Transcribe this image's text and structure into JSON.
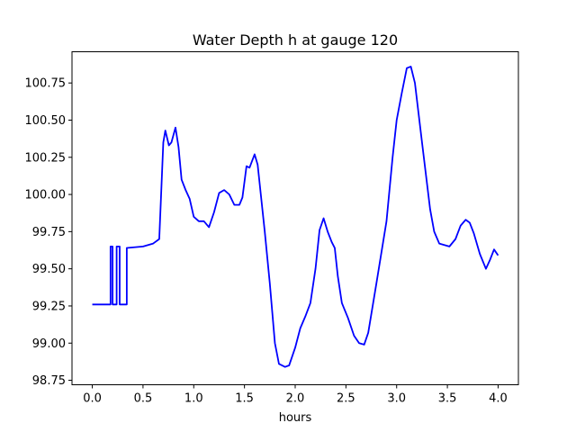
{
  "chart_data": {
    "type": "line",
    "title": "Water Depth h at gauge 120",
    "xlabel": "hours",
    "ylabel": "",
    "xlim": [
      -0.2,
      4.2
    ],
    "ylim": [
      98.72,
      100.96
    ],
    "xticks": [
      0.0,
      0.5,
      1.0,
      1.5,
      2.0,
      2.5,
      3.0,
      3.5,
      4.0
    ],
    "xtick_labels": [
      "0.0",
      "0.5",
      "1.0",
      "1.5",
      "2.0",
      "2.5",
      "3.0",
      "3.5",
      "4.0"
    ],
    "yticks": [
      98.75,
      99.0,
      99.25,
      99.5,
      99.75,
      100.0,
      100.25,
      100.5,
      100.75
    ],
    "ytick_labels": [
      "98.75",
      "99.00",
      "99.25",
      "99.50",
      "99.75",
      "100.00",
      "100.25",
      "100.50",
      "100.75"
    ],
    "grid": false,
    "series": [
      {
        "color": "#0000ff",
        "points": [
          [
            0.0,
            99.26
          ],
          [
            0.18,
            99.26
          ],
          [
            0.18,
            99.65
          ],
          [
            0.2,
            99.65
          ],
          [
            0.2,
            99.26
          ],
          [
            0.24,
            99.26
          ],
          [
            0.24,
            99.65
          ],
          [
            0.27,
            99.65
          ],
          [
            0.27,
            99.26
          ],
          [
            0.34,
            99.26
          ],
          [
            0.34,
            99.64
          ],
          [
            0.5,
            99.65
          ],
          [
            0.6,
            99.67
          ],
          [
            0.66,
            99.7
          ],
          [
            0.7,
            100.35
          ],
          [
            0.72,
            100.43
          ],
          [
            0.755,
            100.33
          ],
          [
            0.78,
            100.35
          ],
          [
            0.82,
            100.45
          ],
          [
            0.85,
            100.32
          ],
          [
            0.88,
            100.1
          ],
          [
            0.92,
            100.03
          ],
          [
            0.96,
            99.97
          ],
          [
            1.0,
            99.85
          ],
          [
            1.05,
            99.82
          ],
          [
            1.1,
            99.82
          ],
          [
            1.15,
            99.78
          ],
          [
            1.2,
            99.88
          ],
          [
            1.25,
            100.01
          ],
          [
            1.3,
            100.03
          ],
          [
            1.35,
            100.0
          ],
          [
            1.4,
            99.93
          ],
          [
            1.45,
            99.93
          ],
          [
            1.48,
            99.98
          ],
          [
            1.52,
            100.19
          ],
          [
            1.55,
            100.18
          ],
          [
            1.6,
            100.27
          ],
          [
            1.63,
            100.2
          ],
          [
            1.7,
            99.75
          ],
          [
            1.75,
            99.4
          ],
          [
            1.8,
            99.0
          ],
          [
            1.84,
            98.86
          ],
          [
            1.9,
            98.84
          ],
          [
            1.94,
            98.85
          ],
          [
            2.0,
            98.97
          ],
          [
            2.05,
            99.1
          ],
          [
            2.1,
            99.18
          ],
          [
            2.15,
            99.27
          ],
          [
            2.2,
            99.5
          ],
          [
            2.24,
            99.76
          ],
          [
            2.28,
            99.84
          ],
          [
            2.32,
            99.75
          ],
          [
            2.36,
            99.68
          ],
          [
            2.39,
            99.64
          ],
          [
            2.42,
            99.45
          ],
          [
            2.46,
            99.27
          ],
          [
            2.52,
            99.17
          ],
          [
            2.58,
            99.05
          ],
          [
            2.63,
            99.0
          ],
          [
            2.68,
            98.99
          ],
          [
            2.72,
            99.07
          ],
          [
            2.8,
            99.4
          ],
          [
            2.9,
            99.82
          ],
          [
            2.96,
            100.25
          ],
          [
            3.0,
            100.5
          ],
          [
            3.05,
            100.68
          ],
          [
            3.1,
            100.85
          ],
          [
            3.14,
            100.86
          ],
          [
            3.18,
            100.75
          ],
          [
            3.25,
            100.35
          ],
          [
            3.33,
            99.9
          ],
          [
            3.37,
            99.75
          ],
          [
            3.42,
            99.67
          ],
          [
            3.47,
            99.66
          ],
          [
            3.52,
            99.65
          ],
          [
            3.58,
            99.7
          ],
          [
            3.63,
            99.79
          ],
          [
            3.68,
            99.83
          ],
          [
            3.72,
            99.81
          ],
          [
            3.76,
            99.74
          ],
          [
            3.82,
            99.6
          ],
          [
            3.88,
            99.5
          ],
          [
            3.92,
            99.56
          ],
          [
            3.96,
            99.63
          ],
          [
            4.0,
            99.59
          ]
        ]
      }
    ]
  }
}
